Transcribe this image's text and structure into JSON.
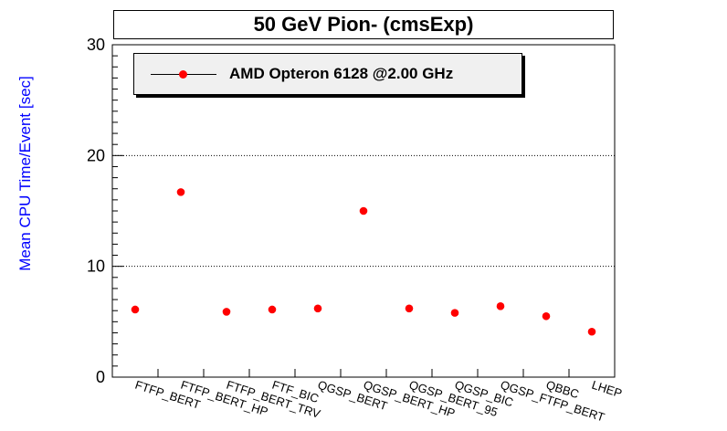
{
  "chart_data": {
    "type": "scatter",
    "title": "50 GeV Pion- (cmsExp)",
    "ylabel": "Mean CPU Time/Event [sec]",
    "xlabel": "",
    "ylim": [
      0,
      30
    ],
    "yticks": [
      0,
      10,
      20,
      30
    ],
    "grid": "horizontal dotted",
    "legend_position": "top-left",
    "categories": [
      "FTFP_BERT",
      "FTFP_BERT_HP",
      "FTFP_BERT_TRV",
      "FTF_BIC",
      "QGSP_BERT",
      "QGSP_BERT_HP",
      "QGSP_BERT_95",
      "QGSP_BIC",
      "QGSP_FTFP_BERT",
      "QBBC",
      "LHEP"
    ],
    "series": [
      {
        "name": "AMD Opteron 6128 @2.00 GHz",
        "color": "#ff0000",
        "values": [
          6.1,
          16.7,
          5.9,
          6.1,
          6.2,
          15.0,
          6.2,
          5.8,
          6.4,
          5.5,
          4.1
        ]
      }
    ]
  }
}
